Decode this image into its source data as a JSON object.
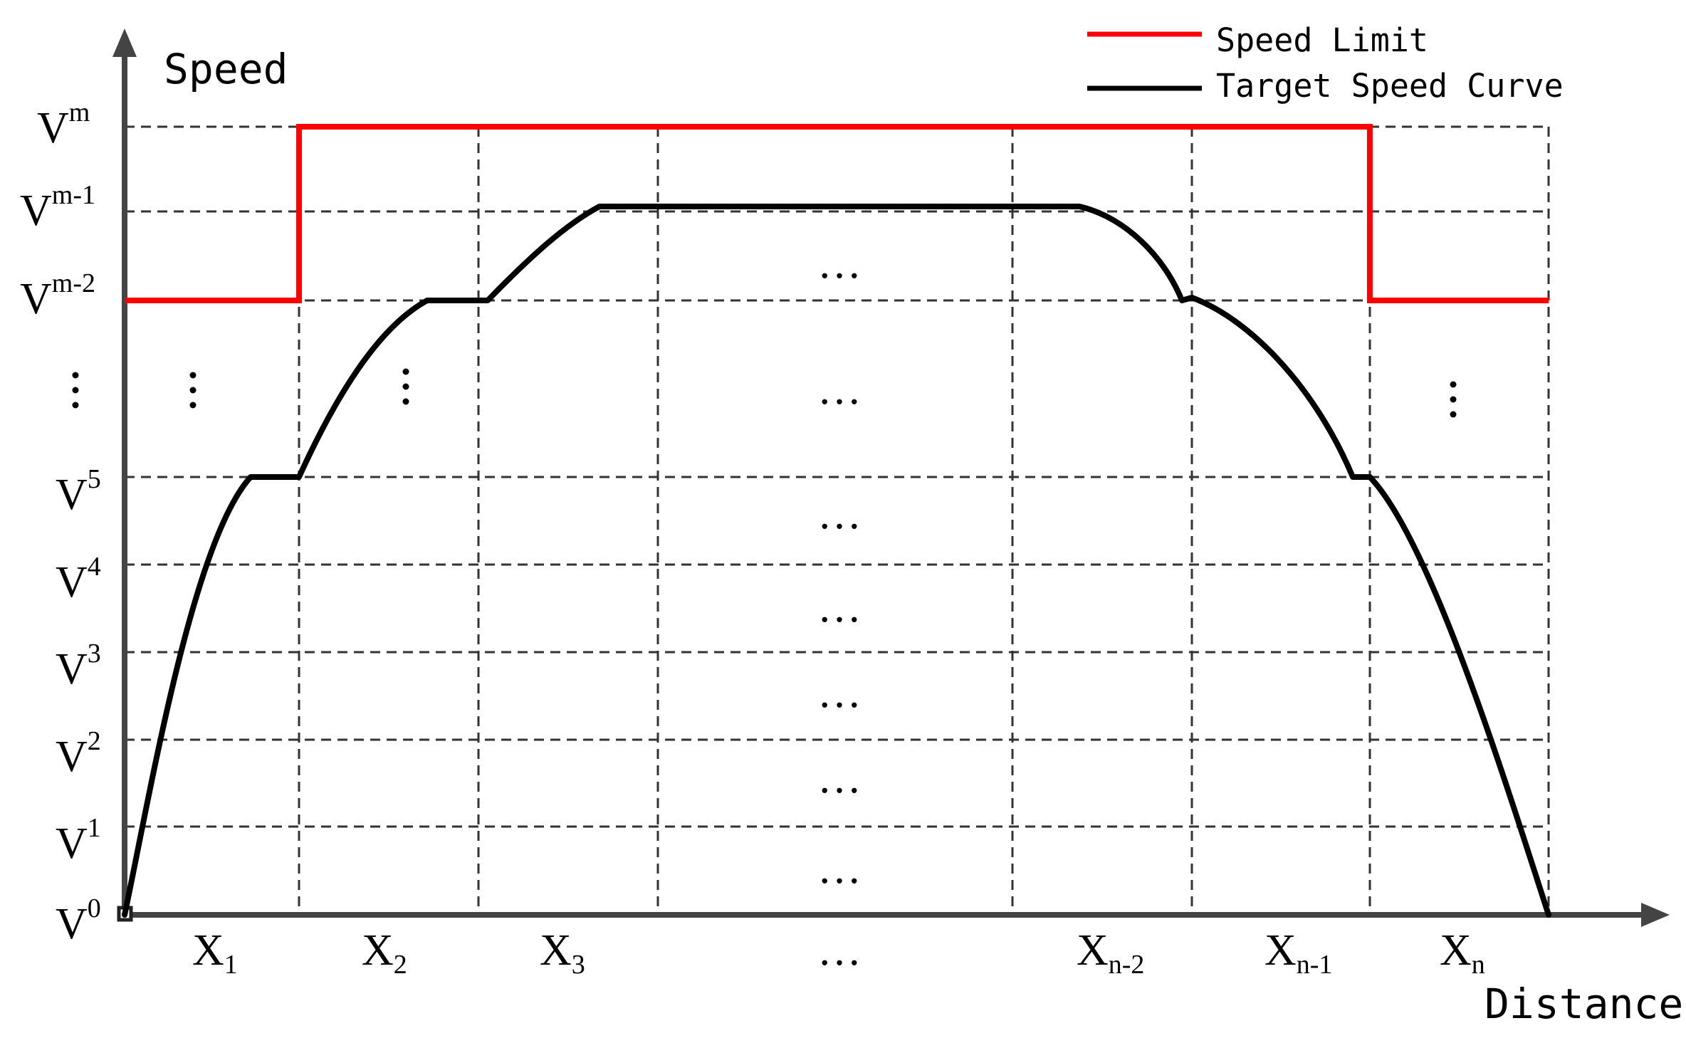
{
  "axes": {
    "y_title": "Speed",
    "x_title": "Distance"
  },
  "legend": {
    "items": [
      {
        "label": "Speed Limit",
        "color": "#ff0000"
      },
      {
        "label": "Target Speed Curve",
        "color": "#000000"
      }
    ]
  },
  "y_labels": [
    {
      "base": "V",
      "sup": "m"
    },
    {
      "base": "V",
      "sup": "m-1"
    },
    {
      "base": "V",
      "sup": "m-2"
    },
    {
      "base": "V",
      "sup": "5"
    },
    {
      "base": "V",
      "sup": "4"
    },
    {
      "base": "V",
      "sup": "3"
    },
    {
      "base": "V",
      "sup": "2"
    },
    {
      "base": "V",
      "sup": "1"
    },
    {
      "base": "V",
      "sup": "0"
    }
  ],
  "x_labels": [
    {
      "base": "X",
      "sub": "1"
    },
    {
      "base": "X",
      "sub": "2"
    },
    {
      "base": "X",
      "sub": "3"
    },
    {
      "base": "…",
      "sub": ""
    },
    {
      "base": "X",
      "sub": "n-2"
    },
    {
      "base": "X",
      "sub": "n-1"
    },
    {
      "base": "X",
      "sub": "n"
    }
  ],
  "ellipsis": "…",
  "colors": {
    "axis": "#444444",
    "grid": "#333333",
    "speed_limit": "#ff0000",
    "target_curve": "#000000"
  }
}
